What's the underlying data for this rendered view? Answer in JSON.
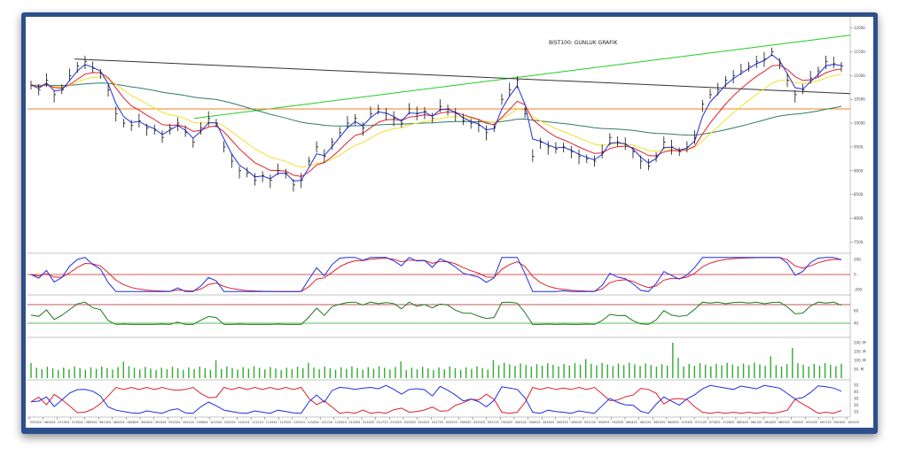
{
  "chart_data": {
    "type": "line",
    "title": "BIST100: GUNLUK GRAFIK",
    "price_axis": {
      "ticks": [
        "12000.",
        "11500.",
        "11000.",
        "10500.",
        "10000.",
        "9500.",
        "9000.",
        "8500.",
        "8000.",
        "7500."
      ],
      "ylim": [
        7300,
        12200
      ]
    },
    "x_dates": [
      "052024",
      "062424",
      "071924",
      "072624",
      "080524",
      "081324",
      "082024",
      "082824",
      "090424",
      "091324",
      "092324",
      "100124",
      "100824",
      "101524",
      "102224",
      "110124",
      "111124",
      "111924",
      "112524",
      "120224",
      "121024",
      "121724",
      "122424",
      "010325",
      "011025",
      "011725",
      "012525",
      "020325",
      "021025",
      "021725",
      "022525",
      "030325",
      "031025",
      "031725",
      "032425",
      "040125",
      "040925",
      "041625",
      "042325",
      "050225",
      "051225",
      "052025",
      "052925",
      "060425",
      "061225",
      "062025",
      "062625",
      "070325",
      "071125",
      "071825",
      "072825",
      "080425",
      "081125",
      "081825",
      "082525",
      "090325",
      "091025",
      "091725",
      "092425",
      "100225"
    ],
    "price_close": [
      10800,
      10700,
      10900,
      10600,
      10700,
      11000,
      11200,
      11300,
      11150,
      11050,
      10700,
      10200,
      10000,
      9950,
      10050,
      9900,
      9850,
      9700,
      9900,
      10000,
      9800,
      9600,
      9900,
      10100,
      10000,
      9500,
      9200,
      9000,
      8950,
      8800,
      8900,
      8800,
      9000,
      8950,
      8700,
      8800,
      9200,
      9500,
      9300,
      9600,
      9800,
      10000,
      10100,
      9900,
      10200,
      10300,
      10200,
      10100,
      10000,
      10300,
      10200,
      10250,
      10100,
      10350,
      10300,
      10200,
      10050,
      10000,
      9950,
      9800,
      9900,
      10500,
      10700,
      10900,
      10200,
      9300,
      9600,
      9500,
      9450,
      9500,
      9400,
      9300,
      9250,
      9200,
      9400,
      9700,
      9600,
      9550,
      9400,
      9200,
      9100,
      9300,
      9600,
      9500,
      9400,
      9500,
      9700,
      10400,
      10600,
      10700,
      10900,
      11000,
      11100,
      11200,
      11300,
      11350,
      11500,
      11250,
      10900,
      10600,
      10700,
      10950,
      11100,
      11300,
      11250,
      11200
    ],
    "ema_fast_label": "",
    "indicator_1": {
      "ticks": [
        "200.",
        "0.",
        "-200."
      ],
      "level": 0
    },
    "indicator_2": {
      "ticks": [
        "60.",
        "40."
      ],
      "upper": 70,
      "lower": 40
    },
    "volume": {
      "ticks": [
        "200. M",
        "150. M",
        "100. M",
        "50. M"
      ]
    },
    "indicator_4": {
      "ticks": [
        "50.",
        "40.",
        "30.",
        "20.",
        "10."
      ]
    },
    "colors": {
      "price_bars": "#111111",
      "ema_fast": "#1f2ee0",
      "ema_mid": "#e0202a",
      "ema_slow": "#f0e030",
      "ema_long": "#2f7a6a",
      "trend_up": "#22cc22",
      "trend_down": "#333333",
      "support": "#f08020",
      "osc_a": "#1f2ee0",
      "osc_b": "#e0202a",
      "rsi": "#227722",
      "rsi_upper": "#aa2222",
      "rsi_lower": "#22aa22",
      "volume": "#33aa33",
      "dmi_plus": "#1f2ee0",
      "dmi_minus": "#e0202a"
    }
  }
}
